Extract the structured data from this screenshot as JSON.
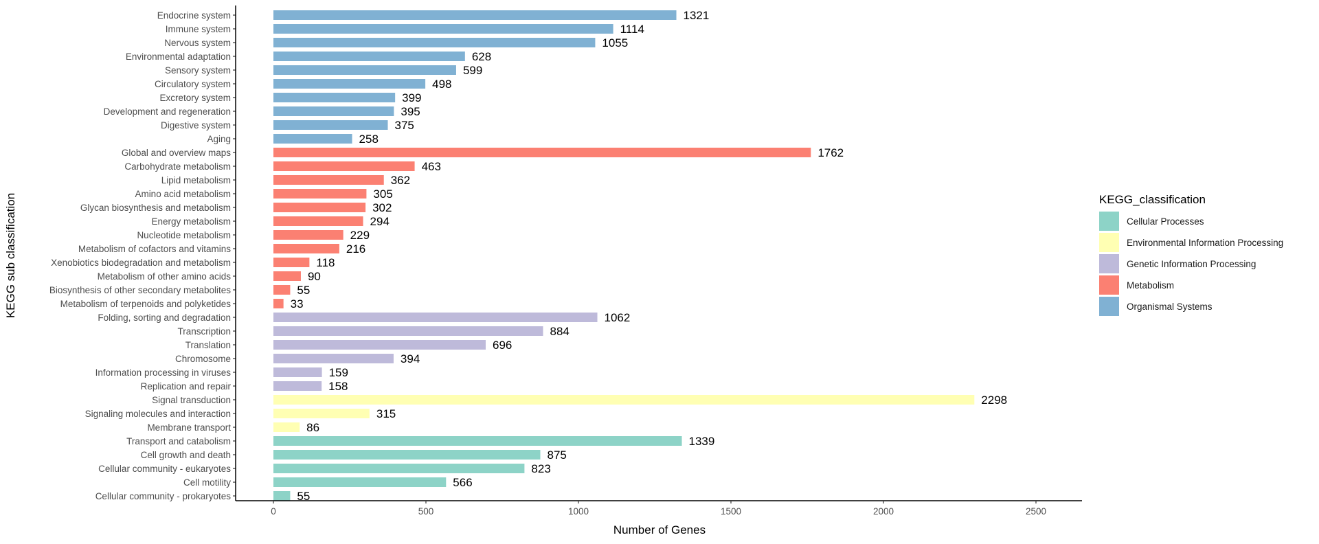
{
  "chart_data": {
    "type": "bar",
    "orientation": "horizontal",
    "xlabel": "Number of Genes",
    "ylabel": "KEGG sub classification",
    "xlim": [
      -120,
      2650
    ],
    "xticks": [
      0,
      500,
      1000,
      1500,
      2000,
      2500
    ],
    "grid": false,
    "legend": {
      "title": "KEGG_classification",
      "placement": "right",
      "entries": [
        {
          "name": "Cellular Processes",
          "color": "#8DD3C7"
        },
        {
          "name": "Environmental Information Processing",
          "color": "#FFFFB3"
        },
        {
          "name": "Genetic Information Processing",
          "color": "#BEBADA"
        },
        {
          "name": "Metabolism",
          "color": "#FB8072"
        },
        {
          "name": "Organismal Systems",
          "color": "#80B1D3"
        }
      ]
    },
    "bars": [
      {
        "label": "Endocrine system",
        "value": 1321,
        "group": 4
      },
      {
        "label": "Immune system",
        "value": 1114,
        "group": 4
      },
      {
        "label": "Nervous system",
        "value": 1055,
        "group": 4
      },
      {
        "label": "Environmental adaptation",
        "value": 628,
        "group": 4
      },
      {
        "label": "Sensory system",
        "value": 599,
        "group": 4
      },
      {
        "label": "Circulatory system",
        "value": 498,
        "group": 4
      },
      {
        "label": "Excretory system",
        "value": 399,
        "group": 4
      },
      {
        "label": "Development and regeneration",
        "value": 395,
        "group": 4
      },
      {
        "label": "Digestive system",
        "value": 375,
        "group": 4
      },
      {
        "label": "Aging",
        "value": 258,
        "group": 4
      },
      {
        "label": "Global and overview maps",
        "value": 1762,
        "group": 3
      },
      {
        "label": "Carbohydrate metabolism",
        "value": 463,
        "group": 3
      },
      {
        "label": "Lipid metabolism",
        "value": 362,
        "group": 3
      },
      {
        "label": "Amino acid metabolism",
        "value": 305,
        "group": 3
      },
      {
        "label": "Glycan biosynthesis and metabolism",
        "value": 302,
        "group": 3
      },
      {
        "label": "Energy metabolism",
        "value": 294,
        "group": 3
      },
      {
        "label": "Nucleotide metabolism",
        "value": 229,
        "group": 3
      },
      {
        "label": "Metabolism of cofactors and vitamins",
        "value": 216,
        "group": 3
      },
      {
        "label": "Xenobiotics biodegradation and metabolism",
        "value": 118,
        "group": 3
      },
      {
        "label": "Metabolism of other amino acids",
        "value": 90,
        "group": 3
      },
      {
        "label": "Biosynthesis of other secondary metabolites",
        "value": 55,
        "group": 3
      },
      {
        "label": "Metabolism of terpenoids and polyketides",
        "value": 33,
        "group": 3
      },
      {
        "label": "Folding, sorting and degradation",
        "value": 1062,
        "group": 2
      },
      {
        "label": "Transcription",
        "value": 884,
        "group": 2
      },
      {
        "label": "Translation",
        "value": 696,
        "group": 2
      },
      {
        "label": "Chromosome",
        "value": 394,
        "group": 2
      },
      {
        "label": "Information processing in viruses",
        "value": 159,
        "group": 2
      },
      {
        "label": "Replication and repair",
        "value": 158,
        "group": 2
      },
      {
        "label": "Signal transduction",
        "value": 2298,
        "group": 1
      },
      {
        "label": "Signaling molecules and interaction",
        "value": 315,
        "group": 1
      },
      {
        "label": "Membrane transport",
        "value": 86,
        "group": 1
      },
      {
        "label": "Transport and catabolism",
        "value": 1339,
        "group": 0
      },
      {
        "label": "Cell growth and death",
        "value": 875,
        "group": 0
      },
      {
        "label": "Cellular community - eukaryotes",
        "value": 823,
        "group": 0
      },
      {
        "label": "Cell motility",
        "value": 566,
        "group": 0
      },
      {
        "label": "Cellular community - prokaryotes",
        "value": 55,
        "group": 0
      }
    ]
  }
}
